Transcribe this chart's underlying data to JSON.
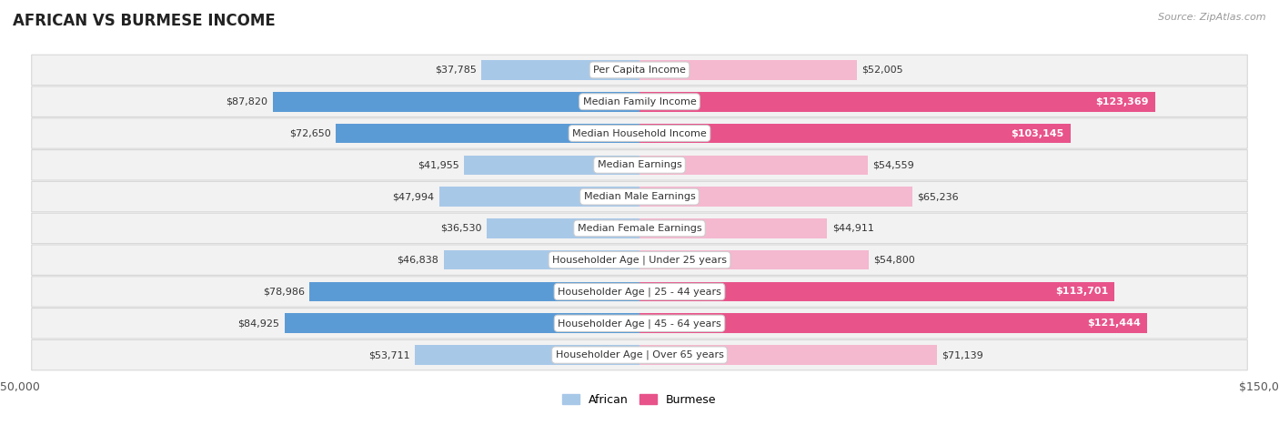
{
  "title": "AFRICAN VS BURMESE INCOME",
  "source": "Source: ZipAtlas.com",
  "categories": [
    "Per Capita Income",
    "Median Family Income",
    "Median Household Income",
    "Median Earnings",
    "Median Male Earnings",
    "Median Female Earnings",
    "Householder Age | Under 25 years",
    "Householder Age | 25 - 44 years",
    "Householder Age | 45 - 64 years",
    "Householder Age | Over 65 years"
  ],
  "african_values": [
    37785,
    87820,
    72650,
    41955,
    47994,
    36530,
    46838,
    78986,
    84925,
    53711
  ],
  "burmese_values": [
    52005,
    123369,
    103145,
    54559,
    65236,
    44911,
    54800,
    113701,
    121444,
    71139
  ],
  "african_labels": [
    "$37,785",
    "$87,820",
    "$72,650",
    "$41,955",
    "$47,994",
    "$36,530",
    "$46,838",
    "$78,986",
    "$84,925",
    "$53,711"
  ],
  "burmese_labels": [
    "$52,005",
    "$123,369",
    "$103,145",
    "$54,559",
    "$65,236",
    "$44,911",
    "$54,800",
    "$113,701",
    "$121,444",
    "$71,139"
  ],
  "african_color_light": "#a8c8e8",
  "african_color_dark": "#5b9bd5",
  "burmese_color_light": "#f4b8cf",
  "burmese_color_dark": "#e8538a",
  "max_value": 150000,
  "background_color": "#ffffff",
  "row_bg_color": "#f2f2f2",
  "legend_african": "African",
  "legend_burmese": "Burmese",
  "african_dark_threshold": 70000,
  "burmese_dark_threshold": 95000
}
